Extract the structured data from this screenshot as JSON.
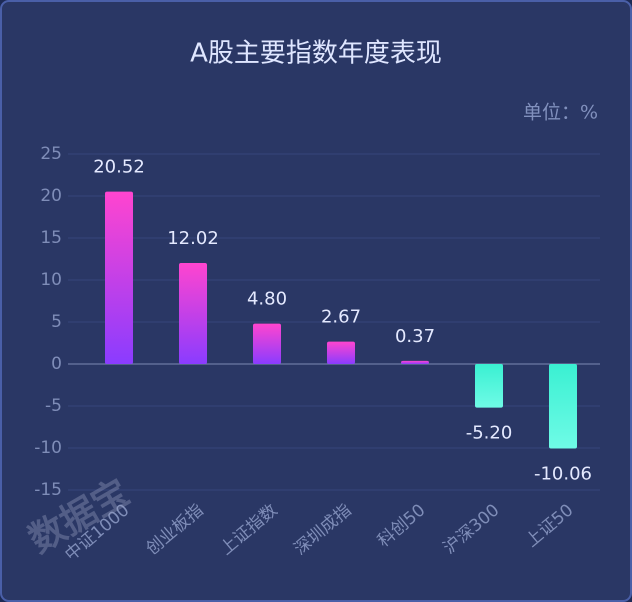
{
  "chart_data": {
    "type": "bar",
    "title": "A股主要指数年度表现",
    "unit_label": "单位：%",
    "watermark": "数据宝",
    "categories": [
      "中证1000",
      "创业板指",
      "上证指数",
      "深圳成指",
      "科创50",
      "沪深300",
      "上证50"
    ],
    "values": [
      20.52,
      12.02,
      4.8,
      2.67,
      0.37,
      -5.2,
      -10.06
    ],
    "value_labels": [
      "20.52",
      "12.02",
      "4.80",
      "2.67",
      "0.37",
      "-5.20",
      "-10.06"
    ],
    "positive_colors": [
      "#ff45cf",
      "#8a3cff"
    ],
    "negative_colors": [
      "#3af0d2",
      "#6ffbe6"
    ],
    "ylim": [
      -15,
      25
    ],
    "yticks": [
      -15,
      -10,
      -5,
      0,
      5,
      10,
      15,
      20,
      25
    ],
    "grid": true
  }
}
